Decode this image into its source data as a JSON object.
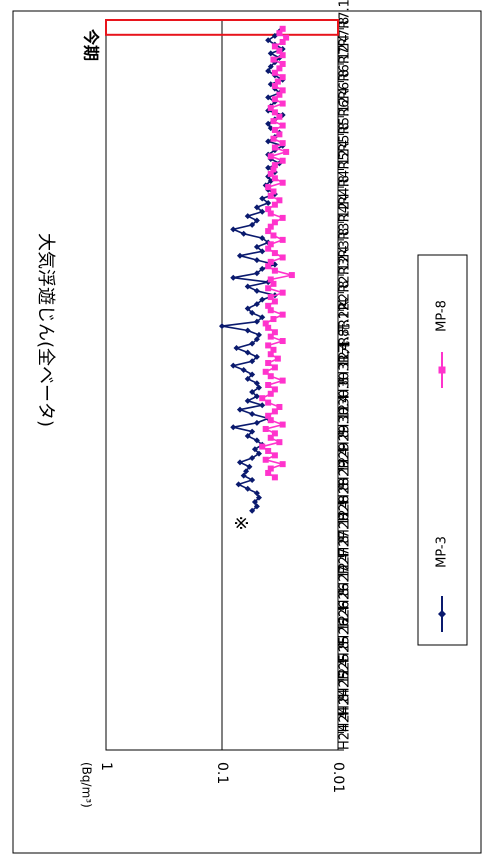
{
  "chart_data": {
    "type": "line",
    "title": "大気浮遊じん(全ベータ)",
    "ylabel": "(Bq/m³)",
    "y_scale": "log",
    "ylim": [
      0.01,
      1
    ],
    "y_ticks": [
      "1",
      "0.1",
      "0.01"
    ],
    "gridlines_y": [
      0.1
    ],
    "x_tick_labels": [
      "H24.4",
      "H24.8",
      "H24.12",
      "H25.4",
      "H25.8",
      "H25.12",
      "H26.4",
      "H26.8",
      "H26.12",
      "H27.4",
      "H27.8",
      "H27.12",
      "H28.4",
      "H28.8",
      "H28.12",
      "H29.4",
      "H29.8",
      "H29.12",
      "H30.4",
      "H30.8",
      "H30.12",
      "H31.4",
      "R元.8",
      "R元.12",
      "R2.4",
      "R2.8",
      "R2.12",
      "R3.4",
      "R3.8",
      "R3.12",
      "R4.4",
      "R4.8",
      "R4.12",
      "R5.4",
      "R5.8",
      "R5.12",
      "R6.4",
      "R6.8",
      "R6.12",
      "R7.4",
      "R7.8",
      "R7.12"
    ],
    "annotation_mark": "※",
    "current_period_label": "今期",
    "current_period_color": "#e8141c",
    "series": [
      {
        "name": "MP-3",
        "color": "#0a1a6e",
        "marker": "diamond",
        "start_index": 13.6,
        "step": 0.25,
        "values": [
          0.055,
          0.05,
          0.052,
          0.048,
          0.05,
          0.06,
          0.072,
          0.055,
          0.065,
          0.062,
          0.058,
          0.07,
          0.055,
          0.048,
          0.052,
          0.045,
          0.05,
          0.06,
          0.055,
          0.08,
          0.05,
          0.04,
          0.055,
          0.07,
          0.045,
          0.06,
          0.05,
          0.055,
          0.048,
          0.05,
          0.06,
          0.055,
          0.065,
          0.08,
          0.055,
          0.05,
          0.06,
          0.075,
          0.055,
          0.05,
          0.048,
          0.06,
          0.1,
          0.05,
          0.045,
          0.055,
          0.06,
          0.05,
          0.045,
          0.035,
          0.05,
          0.06,
          0.04,
          0.08,
          0.05,
          0.045,
          0.035,
          0.05,
          0.07,
          0.045,
          0.05,
          0.04,
          0.045,
          0.065,
          0.08,
          0.055,
          0.05,
          0.06,
          0.045,
          0.05,
          0.04,
          0.045,
          0.035,
          0.04,
          0.042,
          0.038,
          0.04,
          0.035,
          0.04,
          0.032,
          0.038,
          0.04,
          0.035,
          0.03,
          0.04,
          0.035,
          0.032,
          0.038,
          0.04,
          0.035,
          0.03,
          0.04,
          0.038,
          0.035,
          0.04,
          0.032,
          0.035,
          0.038,
          0.03,
          0.035,
          0.04,
          0.038,
          0.035,
          0.032,
          0.038,
          0.03,
          0.035,
          0.04,
          0.035,
          0.032,
          0.038,
          0.035,
          0.03,
          0.04,
          0.038,
          0.035,
          0.045,
          0.035,
          0.04,
          0.038,
          0.032,
          0.04,
          0.035,
          0.038,
          0.03,
          0.035,
          0.04,
          0.038,
          0.045,
          0.06,
          0.035,
          0.04,
          0.032,
          0.038,
          0.045,
          0.035
        ]
      },
      {
        "name": "MP-8",
        "color": "#ff33cc",
        "marker": "square",
        "start_index": 15.5,
        "step": 0.25,
        "values": [
          0.035,
          0.04,
          0.038,
          0.03,
          0.042,
          0.035,
          0.04,
          0.045,
          0.032,
          0.038,
          0.035,
          0.042,
          0.03,
          0.038,
          0.04,
          0.035,
          0.032,
          0.04,
          0.045,
          0.038,
          0.035,
          0.04,
          0.03,
          0.038,
          0.042,
          0.035,
          0.04,
          0.033,
          0.038,
          0.036,
          0.04,
          0.03,
          0.038,
          0.035,
          0.04,
          0.042,
          0.036,
          0.03,
          0.038,
          0.04,
          0.035,
          0.038,
          0.03,
          0.04,
          0.036,
          0.038,
          0.025,
          0.035,
          0.04,
          0.038,
          0.03,
          0.035,
          0.04,
          0.038,
          0.03,
          0.036,
          0.04,
          0.038,
          0.035,
          0.03,
          0.038,
          0.04,
          0.035,
          0.032,
          0.038,
          0.036,
          0.04,
          0.03,
          0.035,
          0.038,
          0.036,
          0.035,
          0.03,
          0.038,
          0.028,
          0.035,
          0.03,
          0.036,
          0.032,
          0.035,
          0.03,
          0.036,
          0.032,
          0.035,
          0.038,
          0.03,
          0.035,
          0.032,
          0.03,
          0.035,
          0.033,
          0.03,
          0.035,
          0.032,
          0.03,
          0.036,
          0.03,
          0.032,
          0.035,
          0.03,
          0.028,
          0.032,
          0.03,
          0.035,
          0.03,
          0.028,
          0.032,
          0.03,
          0.035,
          0.03,
          0.028,
          0.032,
          0.03,
          0.034,
          0.03,
          0.028,
          0.032,
          0.03,
          0.035,
          0.03,
          0.032,
          0.028,
          0.03,
          0.032,
          0.029,
          0.03,
          0.032,
          0.028,
          0.03,
          0.033,
          0.03,
          0.028,
          0.032
        ]
      }
    ],
    "legend": {
      "position": "bottom-center",
      "entries": [
        "MP-3",
        "MP-8"
      ]
    }
  }
}
